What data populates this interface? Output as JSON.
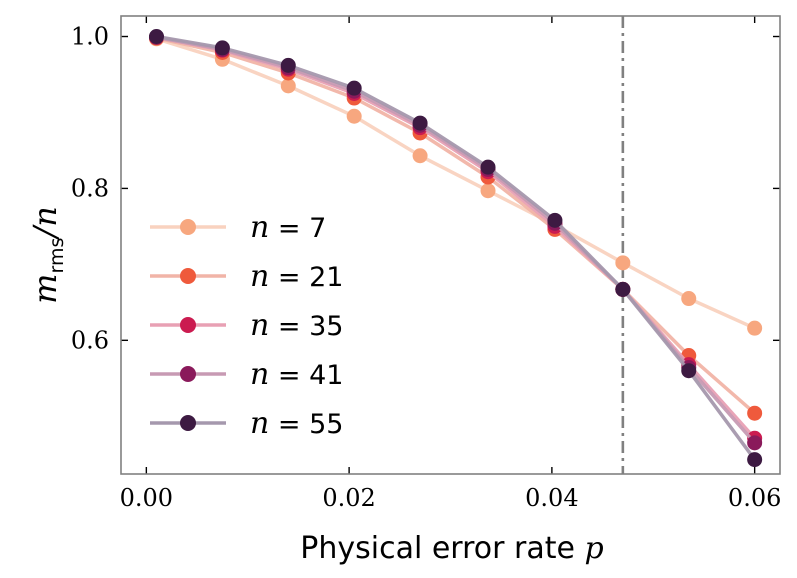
{
  "chart_data": {
    "type": "line",
    "xlabel": "Physical error rate",
    "xlabel_symbol": "p",
    "ylabel_symbol": "m",
    "ylabel_subscript": "rms",
    "ylabel_denominator": "/n",
    "xlim": [
      -0.0025,
      0.0625
    ],
    "ylim": [
      0.424,
      1.027
    ],
    "xticks": [
      0.0,
      0.02,
      0.04,
      0.06
    ],
    "xtick_labels": [
      "0.00",
      "0.02",
      "0.04",
      "0.06"
    ],
    "yticks": [
      0.6,
      0.8,
      1.0
    ],
    "ytick_labels": [
      "0.6",
      "0.8",
      "1.0"
    ],
    "x": [
      0.001,
      0.0075,
      0.014,
      0.0205,
      0.027,
      0.0337,
      0.0403,
      0.047,
      0.0535,
      0.06
    ],
    "vline": 0.047,
    "legend_position": "lower-left",
    "series": [
      {
        "name": "n = 7",
        "n": "7",
        "color": "#f7a77f",
        "line_color": "#f9d2bf",
        "values": [
          0.997,
          0.97,
          0.935,
          0.895,
          0.843,
          0.797,
          0.752,
          0.702,
          0.655,
          0.616
        ]
      },
      {
        "name": "n = 21",
        "n": "21",
        "color": "#ef5a3c",
        "line_color": "#f1b4a7",
        "values": [
          0.998,
          0.979,
          0.952,
          0.919,
          0.873,
          0.815,
          0.746,
          0.667,
          0.58,
          0.504
        ]
      },
      {
        "name": "n = 35",
        "n": "35",
        "color": "#cb1b50",
        "line_color": "#e8a0b4",
        "values": [
          0.999,
          0.982,
          0.957,
          0.925,
          0.88,
          0.822,
          0.75,
          0.667,
          0.568,
          0.471
        ]
      },
      {
        "name": "n = 41",
        "n": "41",
        "color": "#8a1a5b",
        "line_color": "#c79ab3",
        "values": [
          0.999,
          0.983,
          0.959,
          0.928,
          0.883,
          0.825,
          0.754,
          0.667,
          0.564,
          0.465
        ]
      },
      {
        "name": "n = 55",
        "n": "55",
        "color": "#3d1a42",
        "line_color": "#a598ad",
        "values": [
          1.0,
          0.985,
          0.962,
          0.932,
          0.886,
          0.828,
          0.758,
          0.667,
          0.56,
          0.443
        ]
      }
    ]
  }
}
